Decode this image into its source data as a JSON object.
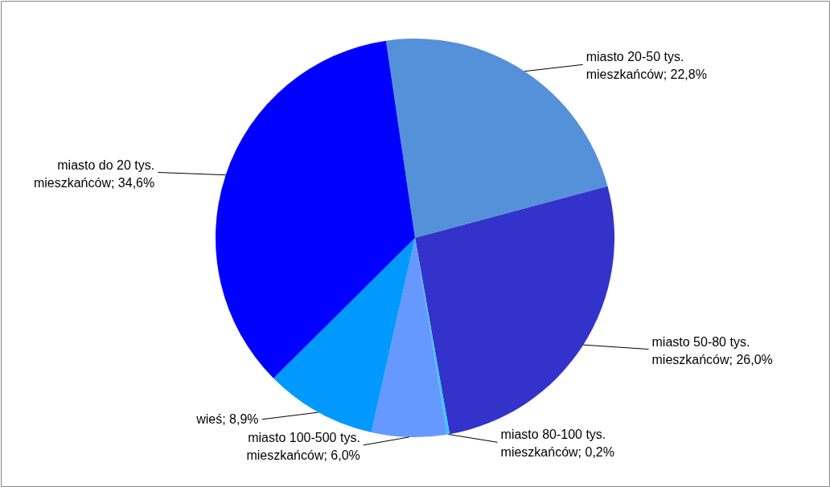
{
  "chart_data": {
    "type": "pie",
    "categories": [
      "miasto 20-50 tys. mieszkańców",
      "miasto 50-80 tys. mieszkańców",
      "miasto 80-100 tys. mieszkańców",
      "miasto 100-500 tys. mieszkańców",
      "wieś",
      "miasto do 20 tys. mieszkańców"
    ],
    "values": [
      22.8,
      26.0,
      0.2,
      6.0,
      8.9,
      34.6
    ],
    "value_labels": [
      "22,8%",
      "26,0%",
      "0,2%",
      "6,0%",
      "8,9%",
      "34,6%"
    ],
    "colors": [
      "#5591d8",
      "#3333cc",
      "#33ccff",
      "#6699ff",
      "#0099ff",
      "#0000ff"
    ]
  }
}
